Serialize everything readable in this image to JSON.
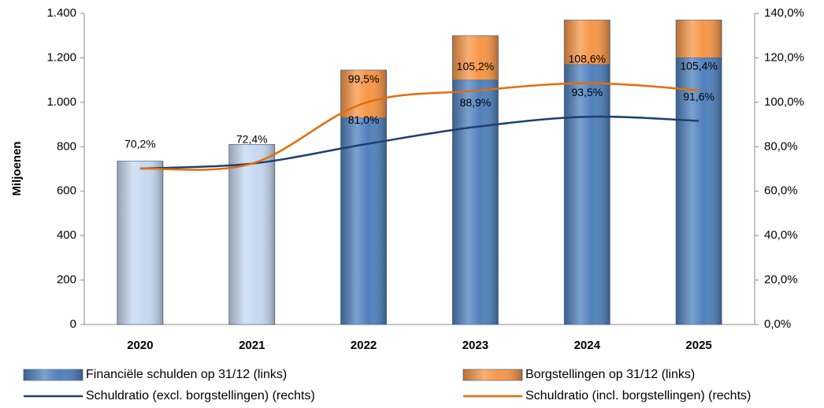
{
  "chart_data": {
    "type": "bar-line",
    "y_label": "Miljoenen",
    "categories": [
      "2020",
      "2021",
      "2022",
      "2023",
      "2024",
      "2025"
    ],
    "ylim": [
      0,
      1400
    ],
    "yticks": [
      0,
      200,
      400,
      600,
      800,
      {
        "value": 1000,
        "label": "1.000"
      },
      {
        "value": 1200,
        "label": "1.200"
      },
      {
        "value": 1400,
        "label": "1.400"
      }
    ],
    "y2lim": [
      0,
      140
    ],
    "y2ticks": [
      {
        "value": 0,
        "label": "0,0%"
      },
      {
        "value": 20,
        "label": "20,0%"
      },
      {
        "value": 40,
        "label": "40,0%"
      },
      {
        "value": 60,
        "label": "60,0%"
      },
      {
        "value": 80,
        "label": "80,0%"
      },
      {
        "value": 100,
        "label": "100,0%"
      },
      {
        "value": 120,
        "label": "120,0%"
      },
      {
        "value": 140,
        "label": "140,0%"
      }
    ],
    "grid": false,
    "series": [
      {
        "name": "Financiële schulden op 31/12 (links)",
        "kind": "bar",
        "color": "#4f81bd",
        "colors": [
          "#c6d9f1",
          "#c6d9f1",
          "#4f81bd",
          "#4f81bd",
          "#4f81bd",
          "#4f81bd"
        ],
        "values": [
          735,
          810,
          930,
          1100,
          1170,
          1200
        ]
      },
      {
        "name": "Borgstellingen op 31/12 (links)",
        "kind": "bar",
        "color": "#f79646",
        "values": [
          0,
          0,
          215,
          200,
          200,
          170
        ]
      },
      {
        "name": "Schuldratio (excl. borgstellingen) (rechts)",
        "kind": "line",
        "axis": "y2",
        "color": "#1f3f6e",
        "values": [
          70.2,
          72.4,
          81.0,
          88.9,
          93.5,
          91.6
        ],
        "value_labels": [
          "70,2%",
          "72,4%",
          "81,0%",
          "88,9%",
          "93,5%",
          "91,6%"
        ]
      },
      {
        "name": "Schuldratio (incl. borgstellingen) (rechts)",
        "kind": "line",
        "axis": "y2",
        "color": "#e46c0a",
        "values": [
          70.2,
          72.4,
          99.5,
          105.2,
          108.6,
          105.4
        ],
        "value_labels": [
          null,
          null,
          "99,5%",
          "105,2%",
          "108,6%",
          "105,4%"
        ]
      }
    ]
  }
}
